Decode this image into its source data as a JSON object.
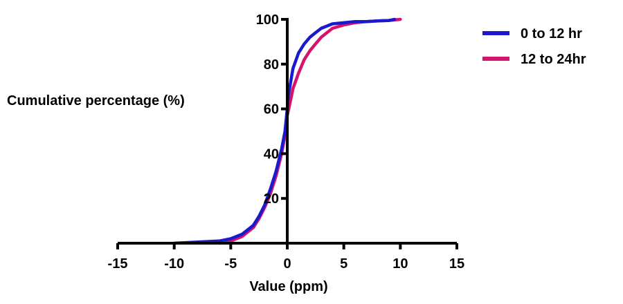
{
  "chart_data": {
    "type": "line",
    "title": "",
    "xlabel": "Value (ppm)",
    "ylabel": "Cumulative percentage (%)",
    "xlim": [
      -15,
      15
    ],
    "ylim": [
      0,
      100
    ],
    "x_ticks": [
      "-15",
      "-10",
      "-5",
      "0",
      "5",
      "10",
      "15"
    ],
    "y_ticks": [
      "20",
      "40",
      "60",
      "80",
      "100"
    ],
    "grid": false,
    "legend_position": "top-right",
    "series": [
      {
        "name": "0 to 12 hr",
        "color": "#1a1acc",
        "x": [
          -10,
          -8,
          -6,
          -5,
          -4,
          -3,
          -2.5,
          -2,
          -1.5,
          -1,
          -0.5,
          -0.2,
          0,
          0.1,
          0.3,
          0.5,
          1,
          1.5,
          2,
          2.5,
          3,
          4,
          5,
          6,
          7,
          8,
          9,
          9.5
        ],
        "y": [
          0,
          0.5,
          1,
          2,
          4,
          8,
          12,
          17,
          24,
          32,
          42,
          50,
          60,
          66,
          72,
          78,
          85,
          89,
          92,
          94,
          96,
          98,
          98.5,
          99,
          99,
          99.3,
          99.5,
          100
        ]
      },
      {
        "name": "12 to 24hr",
        "color": "#d6136b",
        "x": [
          -6,
          -5,
          -4,
          -3,
          -2.5,
          -2,
          -1.5,
          -1,
          -0.5,
          -0.2,
          0,
          0.3,
          0.5,
          1,
          1.5,
          2,
          2.5,
          3,
          3.5,
          4,
          5,
          6,
          7,
          8,
          9,
          10
        ],
        "y": [
          0,
          1,
          3,
          7,
          11,
          16,
          22,
          30,
          40,
          48,
          57,
          64,
          69,
          76,
          82,
          86,
          89,
          92,
          94,
          96,
          97.5,
          98.5,
          99,
          99.3,
          99.5,
          100
        ]
      }
    ]
  }
}
